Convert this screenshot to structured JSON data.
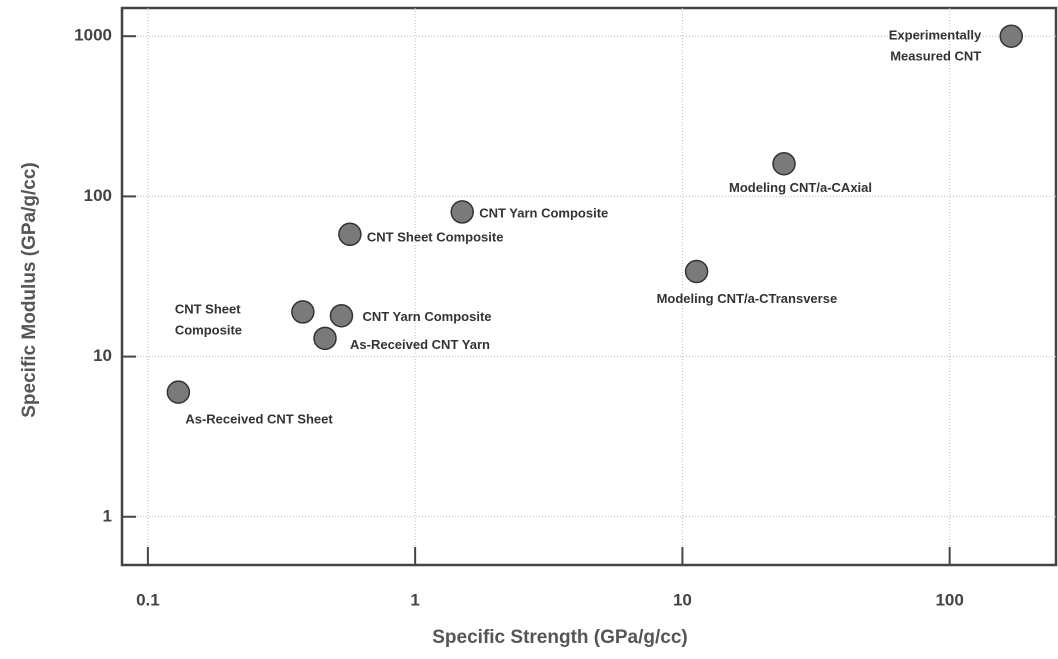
{
  "chart_data": {
    "type": "scatter",
    "x_label": "Specific Strength (GPa/g/cc)",
    "y_label": "Specific Modulus (GPa/g/cc)",
    "log_x": true,
    "log_y": true,
    "grid": true,
    "color": "#7a7a7a",
    "xlim": [
      0.08,
      250
    ],
    "ylim": [
      0.5,
      1500
    ],
    "xticks": [
      0.1,
      1,
      10,
      100
    ],
    "yticks": [
      1,
      10,
      100,
      1000
    ],
    "x": [
      0.13,
      0.38,
      0.46,
      0.53,
      0.57,
      1.5,
      11.3,
      24,
      170
    ],
    "values": [
      6,
      19,
      13,
      18,
      58,
      80,
      34,
      160,
      1000
    ],
    "labels": [
      [
        "As-Received CNT Sheet"
      ],
      [
        "CNT Sheet",
        "Composite"
      ],
      [
        "As-Received CNT Yarn"
      ],
      [
        "CNT Yarn Composite"
      ],
      [
        "CNT Sheet Composite"
      ],
      [
        "CNT Yarn Composite"
      ],
      [
        "Modeling CNT/a-CTransverse"
      ],
      [
        "Modeling CNT/a-CAxial"
      ],
      [
        "Experimentally",
        "Measured  CNT"
      ]
    ]
  }
}
